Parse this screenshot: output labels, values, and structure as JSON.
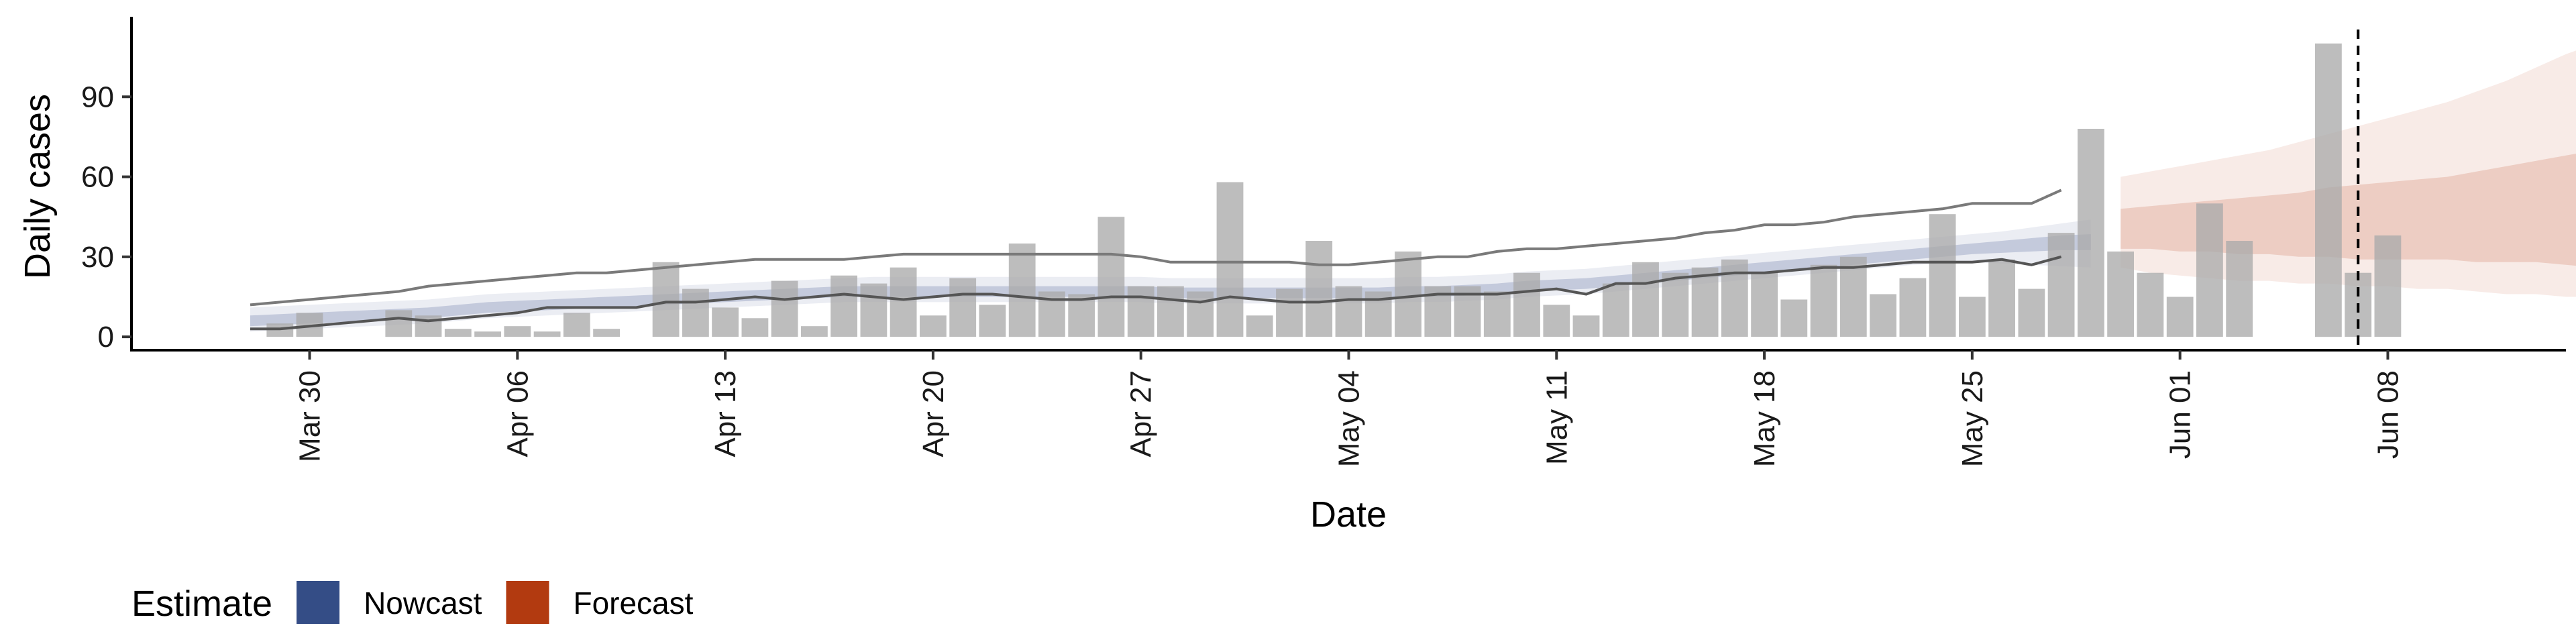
{
  "chart_data": {
    "type": "bar",
    "xlabel": "Date",
    "ylabel": "Daily cases",
    "x_range": [
      "2020-03-24",
      "2020-06-14"
    ],
    "ylim": [
      -5,
      120
    ],
    "y_ticks": [
      0,
      30,
      60,
      90
    ],
    "x_ticks": [
      {
        "date": "2020-03-30",
        "label": "Mar 30"
      },
      {
        "date": "2020-04-06",
        "label": "Apr 06"
      },
      {
        "date": "2020-04-13",
        "label": "Apr 13"
      },
      {
        "date": "2020-04-20",
        "label": "Apr 20"
      },
      {
        "date": "2020-04-27",
        "label": "Apr 27"
      },
      {
        "date": "2020-05-04",
        "label": "May 04"
      },
      {
        "date": "2020-05-11",
        "label": "May 11"
      },
      {
        "date": "2020-05-18",
        "label": "May 18"
      },
      {
        "date": "2020-05-25",
        "label": "May 25"
      },
      {
        "date": "2020-06-01",
        "label": "Jun 01"
      },
      {
        "date": "2020-06-08",
        "label": "Jun 08"
      }
    ],
    "grid": false,
    "legend_position": "bottom-left",
    "vline_date": "2020-06-07",
    "bars": {
      "start_date": "2020-03-29",
      "color": "#aaaaaa",
      "values": [
        5,
        9,
        0,
        0,
        10,
        8,
        3,
        2,
        4,
        2,
        9,
        3,
        0,
        28,
        18,
        11,
        7,
        21,
        4,
        23,
        20,
        26,
        8,
        22,
        12,
        35,
        17,
        16,
        45,
        19,
        19,
        17,
        58,
        8,
        18,
        36,
        19,
        17,
        32,
        19,
        19,
        17,
        24,
        12,
        8,
        20,
        28,
        24,
        26,
        29,
        24,
        14,
        27,
        30,
        16,
        22,
        46,
        15,
        29,
        18,
        39,
        78,
        32,
        24,
        15,
        50,
        36,
        0,
        0,
        110,
        24,
        38
      ]
    },
    "nowcast": {
      "start_date": "2020-03-28",
      "color": "#3a4f8c",
      "mid_upper": [
        8,
        8.5,
        9,
        9.5,
        10,
        10.5,
        11,
        12,
        13,
        13.5,
        14,
        14.5,
        15,
        15.5,
        16,
        16.5,
        17,
        17.5,
        18,
        18.5,
        19,
        19,
        19,
        19,
        19,
        19,
        19,
        19,
        19,
        19,
        19,
        18.5,
        18.5,
        18.5,
        18.5,
        18.5,
        18.5,
        18.5,
        18.5,
        19,
        19,
        19.5,
        20,
        21,
        21.5,
        22,
        23,
        24,
        25,
        26,
        27,
        28,
        29,
        30,
        31,
        32,
        33,
        34,
        35,
        36,
        37,
        38,
        38.5
      ],
      "mid_lower": [
        4,
        4.5,
        5,
        5.5,
        6,
        6.5,
        7,
        8,
        9,
        9.5,
        10,
        10.5,
        11,
        11.5,
        12,
        12.5,
        13,
        13.5,
        14,
        14.5,
        15,
        15,
        15,
        15,
        15,
        15,
        15,
        15,
        15,
        15,
        15,
        14.5,
        14.5,
        14.5,
        14.5,
        14.5,
        14.5,
        14.5,
        14.5,
        15,
        15,
        15.5,
        16,
        17,
        17.5,
        18,
        19,
        20,
        21,
        22,
        23,
        24,
        25,
        26,
        27,
        28,
        29,
        30,
        31,
        31.5,
        32,
        32.5,
        32.5
      ],
      "inner_upper": [
        11,
        11.5,
        12,
        12.5,
        13,
        13.5,
        14,
        15,
        16,
        16.5,
        17,
        17.5,
        18,
        18.5,
        19,
        19.5,
        20,
        20.5,
        21,
        21.5,
        22,
        22.5,
        22.5,
        22.5,
        22.5,
        22.5,
        22.5,
        22.5,
        22.5,
        22.5,
        22.5,
        22,
        22,
        22,
        22,
        22,
        22,
        22,
        22,
        22.5,
        22.5,
        23,
        23.5,
        24.5,
        25,
        25.5,
        26.5,
        27.5,
        28.5,
        29.5,
        30.5,
        31.5,
        32.5,
        33.5,
        34.5,
        35.5,
        36.5,
        37.5,
        38.5,
        39.5,
        41,
        42.5,
        44
      ],
      "inner_lower": [
        2,
        2.5,
        3,
        3.5,
        4,
        4.5,
        5,
        6,
        7,
        7.5,
        8,
        8.5,
        9,
        9.5,
        10,
        10.5,
        11,
        11.5,
        12,
        12.5,
        13,
        13,
        13,
        13,
        13,
        13,
        13,
        13,
        13,
        13,
        13,
        12.5,
        12.5,
        12.5,
        12.5,
        12.5,
        12.5,
        12.5,
        12.5,
        13,
        13,
        13.5,
        14,
        15,
        15.5,
        16,
        17,
        18,
        19,
        20,
        21,
        22,
        23,
        24,
        25,
        26,
        27,
        27.5,
        28,
        27.5,
        27,
        26.5,
        26
      ],
      "outer_upper": [
        12,
        13,
        14,
        15,
        16,
        17,
        19,
        20,
        21,
        22,
        23,
        24,
        24,
        25,
        26,
        27,
        28,
        29,
        29,
        29,
        29,
        30,
        31,
        31,
        31,
        31,
        31,
        31,
        31,
        31,
        30,
        28,
        28,
        28,
        28,
        28,
        27,
        27,
        28,
        29,
        30,
        30,
        32,
        33,
        33,
        34,
        35,
        36,
        37,
        39,
        40,
        42,
        42,
        43,
        45,
        46,
        47,
        48,
        50,
        50,
        50,
        55
      ],
      "outer_lower": [
        3,
        3,
        4,
        5,
        6,
        7,
        6,
        7,
        8,
        9,
        11,
        11,
        11,
        11,
        13,
        13,
        14,
        15,
        14,
        15,
        16,
        15,
        14,
        15,
        16,
        16,
        15,
        14,
        14,
        15,
        15,
        14,
        13,
        15,
        14,
        13,
        13,
        14,
        14,
        15,
        16,
        16,
        16,
        17,
        18,
        16,
        20,
        20,
        22,
        23,
        24,
        24,
        25,
        26,
        26,
        27,
        28,
        28,
        28,
        29,
        27,
        30
      ]
    },
    "forecast": {
      "start_date": "2020-05-30",
      "color": "#b83a14",
      "outer_upper": [
        60,
        62,
        64,
        66,
        68,
        70,
        73,
        76,
        79,
        82,
        85,
        88,
        92,
        96,
        101,
        106,
        110,
        112
      ],
      "outer_lower": [
        26,
        24,
        23,
        22,
        21,
        21,
        20,
        20,
        19,
        19,
        18,
        18,
        17,
        16,
        16,
        15,
        15,
        15
      ],
      "inner_upper": [
        48,
        49,
        50,
        51,
        52,
        53,
        54,
        56,
        57,
        58,
        59,
        60,
        62,
        64,
        66,
        68,
        70,
        68
      ],
      "inner_lower": [
        33,
        33,
        32,
        32,
        31,
        31,
        30,
        30,
        29,
        29,
        29,
        29,
        28,
        28,
        28,
        27,
        26,
        25
      ]
    },
    "legend": {
      "title": "Estimate",
      "items": [
        {
          "label": "Nowcast",
          "color": "#344d86"
        },
        {
          "label": "Forecast",
          "color": "#b23a10"
        }
      ]
    }
  }
}
